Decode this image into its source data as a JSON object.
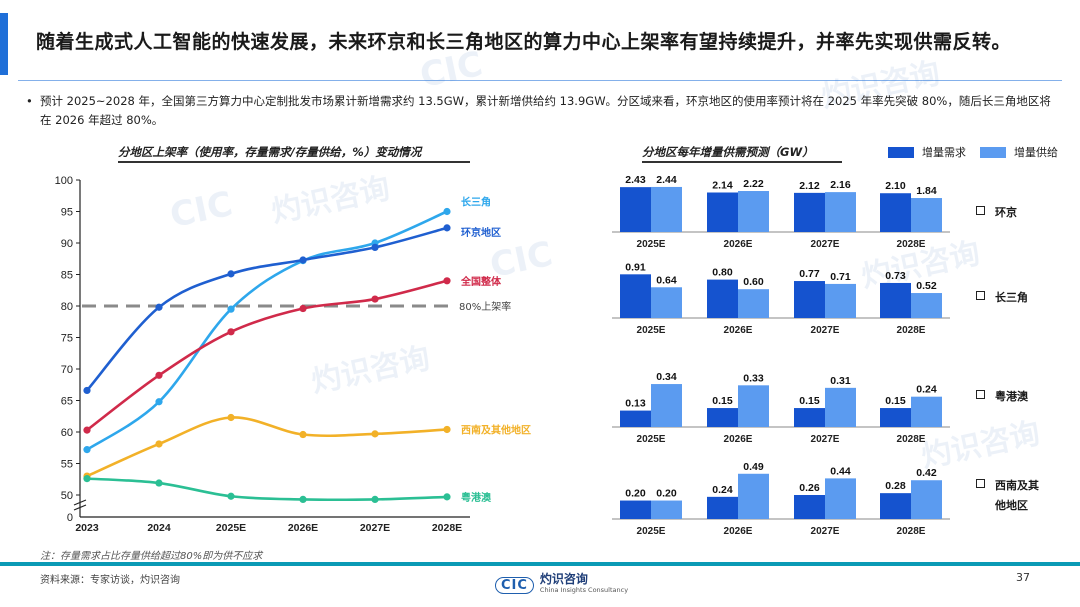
{
  "header": {
    "title": "随着生成式人工智能的快速发展，未来环京和长三角地区的算力中心上架率有望持续提升，并率先实现供需反转。",
    "accent_color": "#1f6fd8"
  },
  "bullet": {
    "text": "预计 2025~2028 年，全国第三方算力中心定制批发市场累计新增需求约 13.5GW，累计新增供给约 13.9GW。分区域来看，环京地区的使用率预计将在 2025 年率先突破 80%，随后长三角地区将在 2026 年超过 80%。"
  },
  "watermark": {
    "cn": "灼识咨询",
    "en": "China Insights Consultancy",
    "logo": "CIC"
  },
  "chart_data": [
    {
      "type": "line",
      "title": "分地区上架率（使用率，存量需求/存量供给，%）变动情况",
      "x": [
        "2023",
        "2024",
        "2025E",
        "2026E",
        "2027E",
        "2028E"
      ],
      "ylim": [
        50,
        100
      ],
      "yticks": [
        50,
        55,
        60,
        65,
        70,
        75,
        80,
        85,
        90,
        95,
        100
      ],
      "y_break_label": "0",
      "series": [
        {
          "name": "长三角",
          "color": "#2ea7ec",
          "values": [
            57.2,
            64.8,
            79.5,
            87.2,
            90.0,
            95.0
          ]
        },
        {
          "name": "环京地区",
          "color": "#1f5fd0",
          "values": [
            66.6,
            79.8,
            85.1,
            87.3,
            89.3,
            92.4
          ]
        },
        {
          "name": "全国整体",
          "color": "#d02a4a",
          "values": [
            60.3,
            69.0,
            75.9,
            79.6,
            81.1,
            84.0
          ]
        },
        {
          "name": "西南及其他地区",
          "color": "#f2b128",
          "values": [
            53.0,
            58.1,
            62.3,
            59.6,
            59.7,
            60.4
          ]
        },
        {
          "name": "粤港澳",
          "color": "#2bbf94",
          "values": [
            52.6,
            51.9,
            49.8,
            49.3,
            49.3,
            49.7
          ]
        }
      ],
      "reference_line": {
        "value": 80,
        "label": "80%上架率",
        "color": "#8a8a8a"
      },
      "grid": false
    },
    {
      "type": "bar",
      "title": "分地区每年增量供需预测（GW）",
      "categories": [
        "2025E",
        "2026E",
        "2027E",
        "2028E"
      ],
      "legend": [
        {
          "name": "增量需求",
          "color": "#1553cf"
        },
        {
          "name": "增量供给",
          "color": "#5b9bf0"
        }
      ],
      "panels": [
        {
          "region": "环京",
          "demand": [
            2.43,
            2.14,
            2.12,
            2.1
          ],
          "supply": [
            2.44,
            2.22,
            2.16,
            1.84
          ],
          "demand_labels": [
            "2.43",
            "2.14",
            "2.12",
            "2.10"
          ],
          "supply_labels": [
            "2.44",
            "2.22",
            "2.16",
            "1.84"
          ]
        },
        {
          "region": "长三角",
          "demand": [
            0.91,
            0.8,
            0.77,
            0.73
          ],
          "supply": [
            0.64,
            0.6,
            0.71,
            0.52
          ],
          "demand_labels": [
            "0.91",
            "0.80",
            "0.77",
            "0.73"
          ],
          "supply_labels": [
            "0.64",
            "0.60",
            "0.71",
            "0.52"
          ]
        },
        {
          "region": "粤港澳",
          "demand": [
            0.13,
            0.15,
            0.15,
            0.15
          ],
          "supply": [
            0.34,
            0.33,
            0.31,
            0.24
          ],
          "demand_labels": [
            "0.13",
            "0.15",
            "0.15",
            "0.15"
          ],
          "supply_labels": [
            "0.34",
            "0.33",
            "0.31",
            "0.24"
          ]
        },
        {
          "region": "西南及其他地区",
          "demand": [
            0.2,
            0.24,
            0.26,
            0.28
          ],
          "supply": [
            0.2,
            0.49,
            0.44,
            0.42
          ],
          "demand_labels": [
            "0.20",
            "0.24",
            "0.26",
            "0.28"
          ],
          "supply_labels": [
            "0.20",
            "0.49",
            "0.44",
            "0.42"
          ]
        }
      ],
      "region_labels": [
        "环京",
        "长三角",
        "粤港澳",
        "西南及其\n他地区"
      ]
    }
  ],
  "footer": {
    "note": "注：存量需求占比存量供给超过80%即为供不应求",
    "source": "资料来源：专家访谈，灼识咨询",
    "page": "37",
    "logo_mark": "CIC",
    "logo_cn": "灼识咨询",
    "logo_en": "China Insights Consultancy",
    "bar_color": "#0a9ab5"
  }
}
